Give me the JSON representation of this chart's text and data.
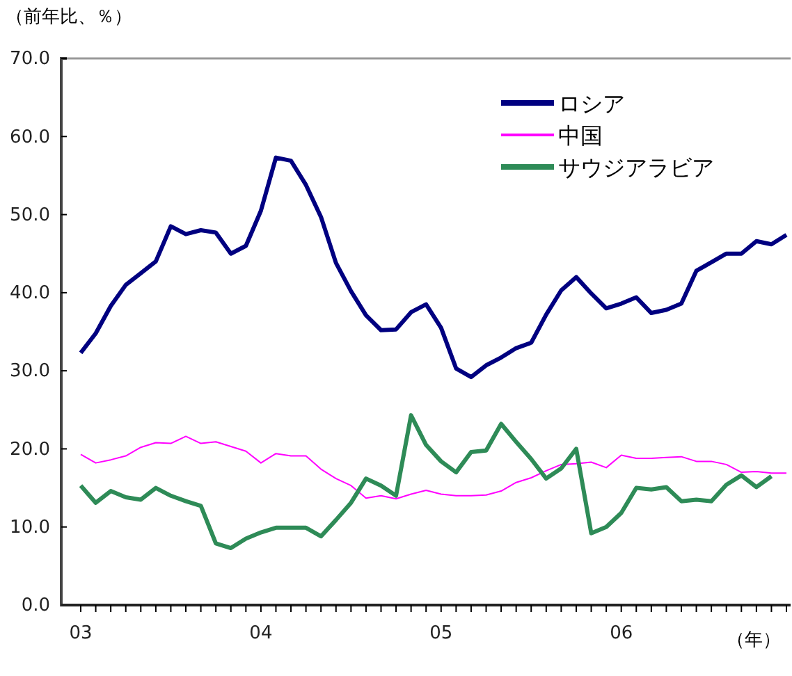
{
  "chart_data": {
    "type": "line",
    "ylabel": "（前年比、％）",
    "xlabel": "（年）",
    "categories": [
      "03",
      null,
      null,
      null,
      null,
      null,
      null,
      null,
      null,
      null,
      null,
      null,
      "04",
      null,
      null,
      null,
      null,
      null,
      null,
      null,
      null,
      null,
      null,
      null,
      "05",
      null,
      null,
      null,
      null,
      null,
      null,
      null,
      null,
      null,
      null,
      null,
      "06",
      null,
      null,
      null,
      null,
      null,
      null,
      null,
      null,
      null,
      null,
      null
    ],
    "ylim": [
      0,
      70
    ],
    "yticks": [
      {
        "value": 0,
        "label": "0.0"
      },
      {
        "value": 10,
        "label": "10.0"
      },
      {
        "value": 20,
        "label": "20.0"
      },
      {
        "value": 30,
        "label": "30.0"
      },
      {
        "value": 40,
        "label": "40.0"
      },
      {
        "value": 50,
        "label": "50.0"
      },
      {
        "value": 60,
        "label": "60.0"
      },
      {
        "value": 70,
        "label": "70.0"
      }
    ],
    "grid": false,
    "legend": "top right",
    "marker": "none",
    "line_style": "solid",
    "series": [
      {
        "name": "ロシア",
        "color": "#000080",
        "values": [
          32.3,
          34.8,
          38.3,
          41,
          42.5,
          44,
          48.5,
          47.5,
          48,
          47.7,
          45,
          46,
          50.5,
          57.3,
          56.9,
          53.8,
          49.7,
          43.8,
          40.2,
          37.1,
          35.2,
          35.3,
          37.5,
          38.5,
          35.5,
          30.3,
          29.2,
          30.7,
          31.7,
          32.9,
          33.6,
          37.2,
          40.3,
          42,
          39.9,
          38,
          38.6,
          39.4,
          37.4,
          37.8,
          38.6,
          42.8,
          43.9,
          45,
          45,
          46.6,
          46.2,
          47.4
        ]
      },
      {
        "name": "中国",
        "color": "#ff00ff",
        "values": [
          19.3,
          18.2,
          18.6,
          19.1,
          20.2,
          20.8,
          20.7,
          21.6,
          20.7,
          20.9,
          20.3,
          19.7,
          18.2,
          19.4,
          19.1,
          19.1,
          17.4,
          16.2,
          15.3,
          13.7,
          14,
          13.6,
          14.2,
          14.7,
          14.2,
          14,
          14,
          14.1,
          14.6,
          15.7,
          16.3,
          17.2,
          18,
          18.1,
          18.3,
          17.6,
          19.2,
          18.8,
          18.8,
          18.9,
          19,
          18.4,
          18.4,
          18,
          17,
          17.1,
          16.9,
          16.9
        ]
      },
      {
        "name": "サウジアラビア",
        "color": "#2e8b57",
        "values": [
          15.3,
          13.1,
          14.6,
          13.8,
          13.5,
          15,
          14,
          13.3,
          12.7,
          7.9,
          7.3,
          8.5,
          9.3,
          9.9,
          9.9,
          9.9,
          8.8,
          10.9,
          13.1,
          16.2,
          15.3,
          14,
          24.3,
          20.5,
          18.4,
          17,
          19.6,
          19.8,
          23.2,
          20.9,
          18.7,
          16.2,
          17.5,
          20,
          9.2,
          10,
          11.8,
          15,
          14.8,
          15.1,
          13.3,
          13.5,
          13.3,
          15.4,
          16.6,
          15.1,
          16.5,
          null
        ]
      }
    ]
  }
}
